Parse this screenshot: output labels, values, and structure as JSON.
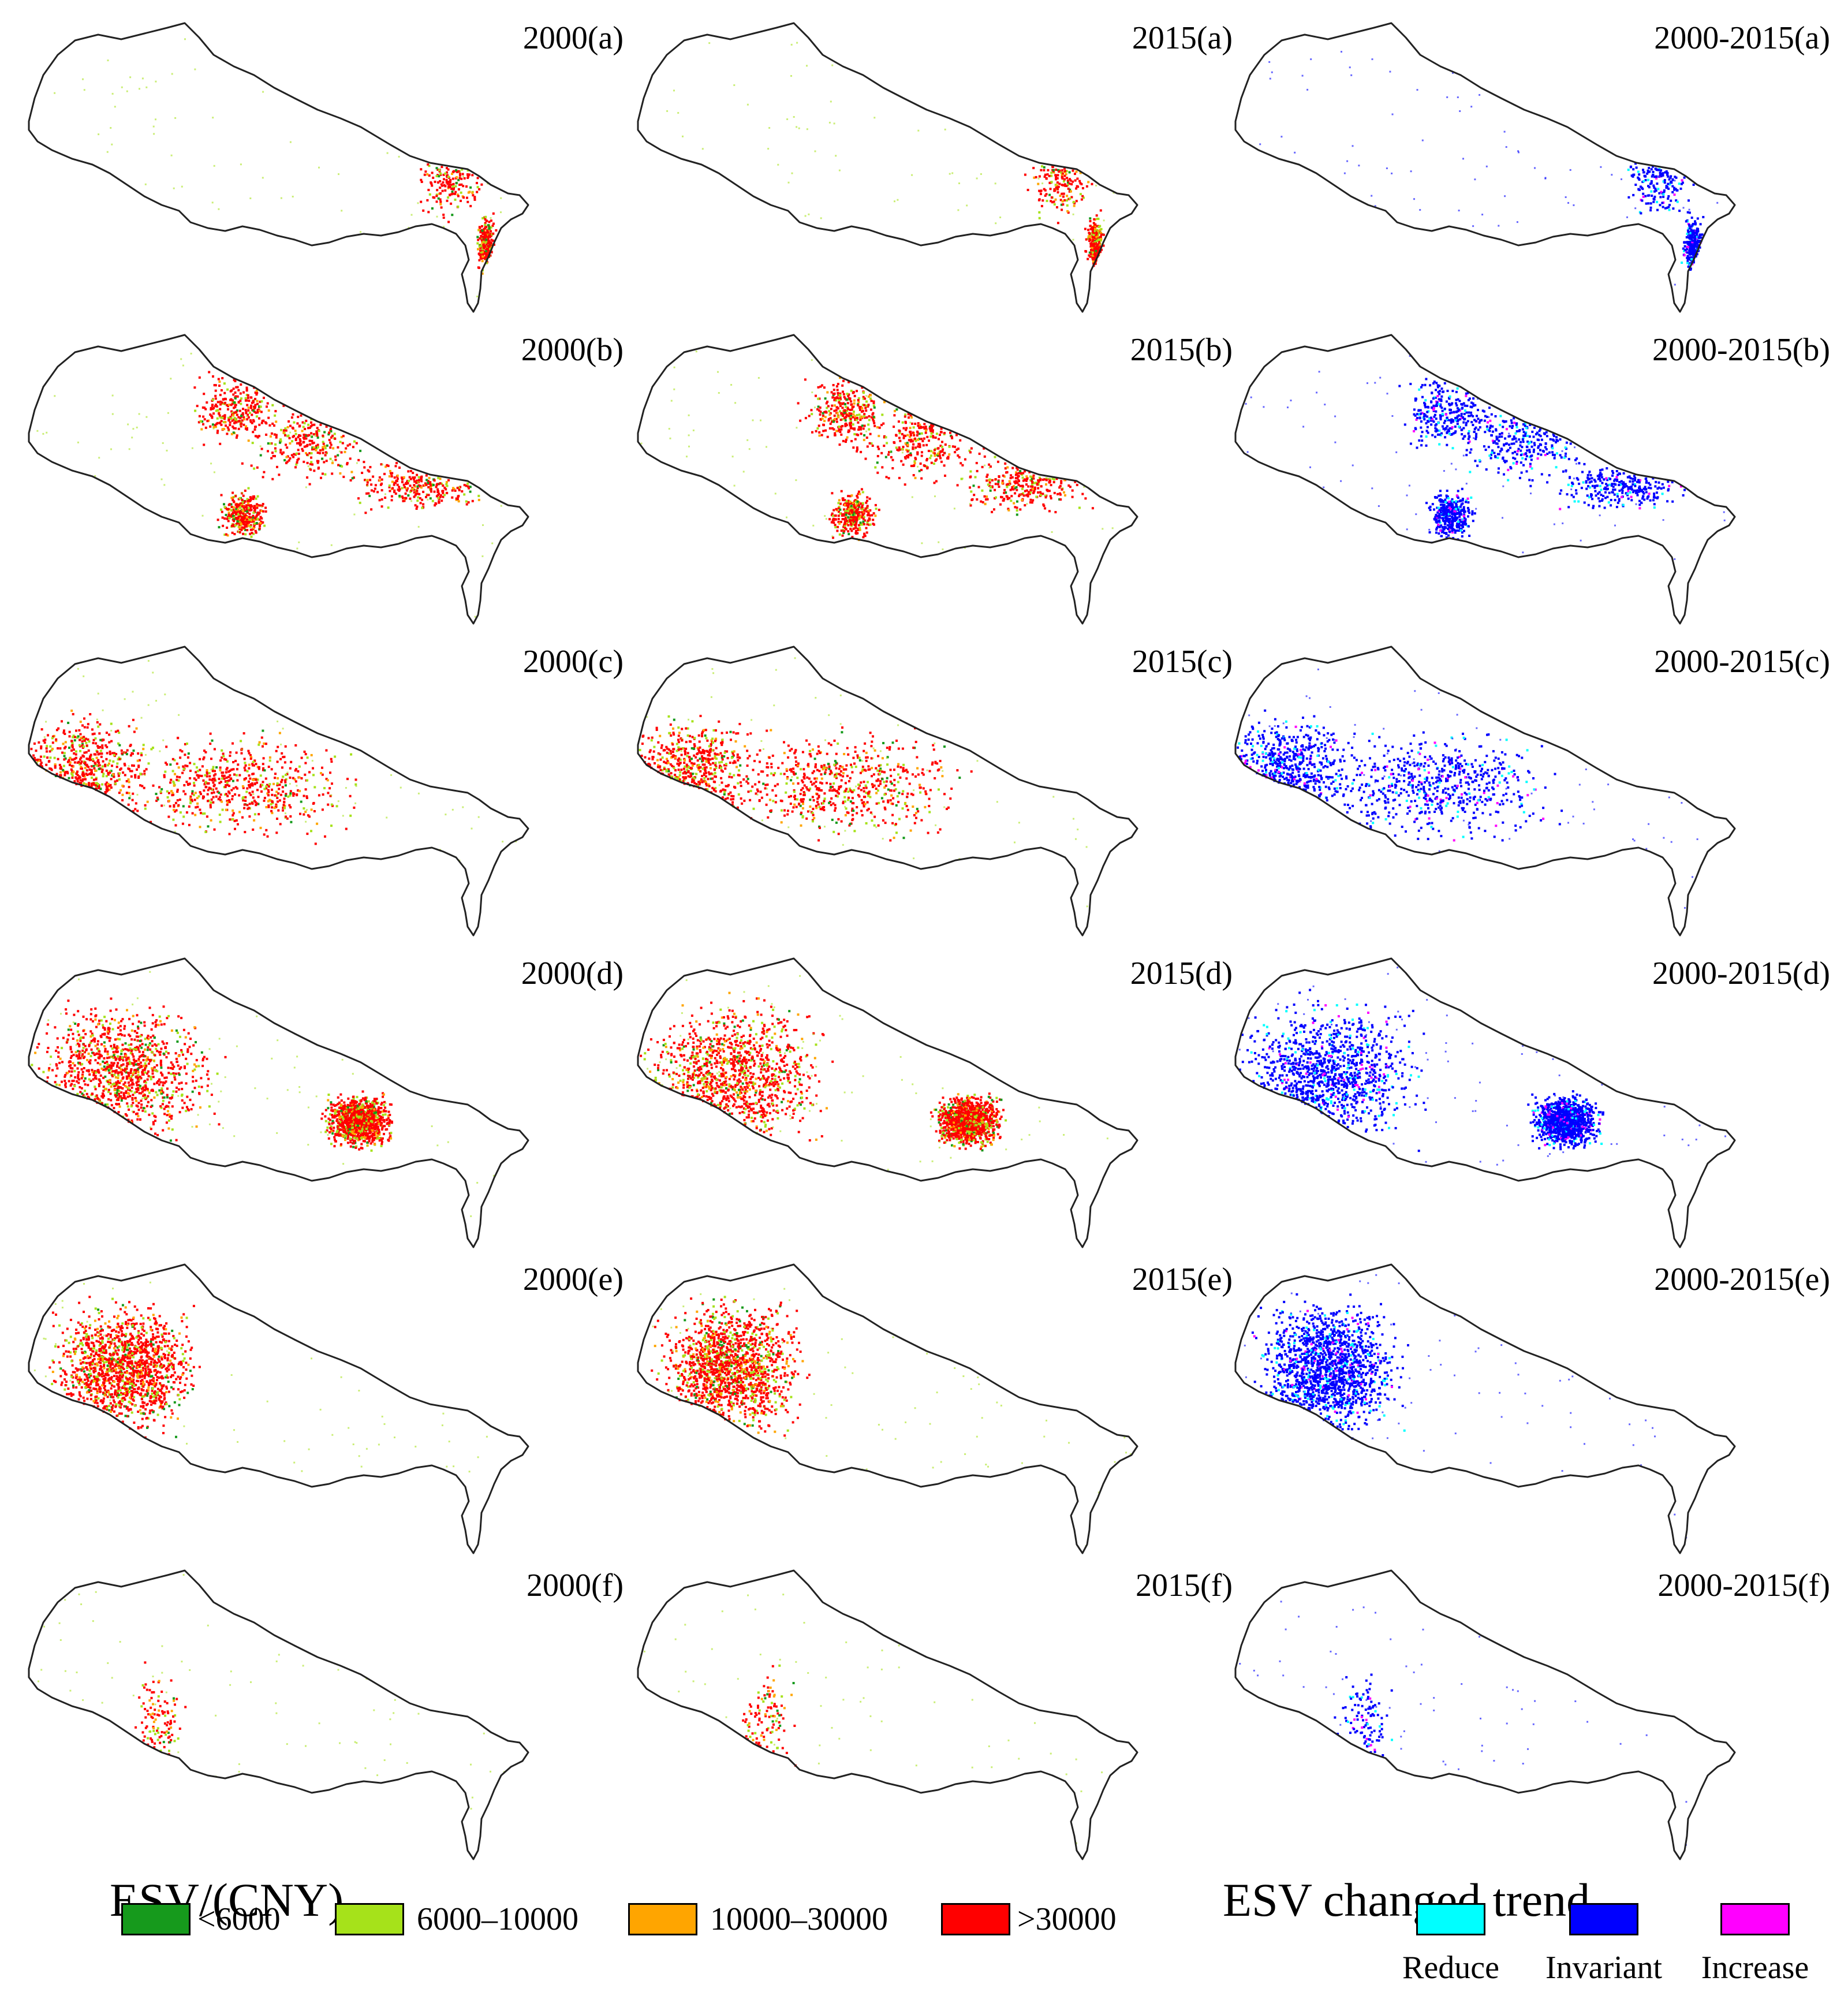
{
  "figure": {
    "rows": [
      "a",
      "b",
      "c",
      "d",
      "e",
      "f"
    ],
    "columns": [
      {
        "id": "y2000",
        "role": "esv"
      },
      {
        "id": "y2015",
        "role": "esv"
      },
      {
        "id": "change",
        "role": "trend"
      }
    ],
    "panels": [
      {
        "row": "a",
        "col": "y2000",
        "label": "2000(a)"
      },
      {
        "row": "a",
        "col": "y2015",
        "label": "2015(a)"
      },
      {
        "row": "a",
        "col": "change",
        "label": "2000-2015(a)"
      },
      {
        "row": "b",
        "col": "y2000",
        "label": "2000(b)"
      },
      {
        "row": "b",
        "col": "y2015",
        "label": "2015(b)"
      },
      {
        "row": "b",
        "col": "change",
        "label": "2000-2015(b)"
      },
      {
        "row": "c",
        "col": "y2000",
        "label": "2000(c)"
      },
      {
        "row": "c",
        "col": "y2015",
        "label": "2015(c)"
      },
      {
        "row": "c",
        "col": "change",
        "label": "2000-2015(c)"
      },
      {
        "row": "d",
        "col": "y2000",
        "label": "2000(d)"
      },
      {
        "row": "d",
        "col": "y2015",
        "label": "2015(d)"
      },
      {
        "row": "d",
        "col": "change",
        "label": "2000-2015(d)"
      },
      {
        "row": "e",
        "col": "y2000",
        "label": "2000(e)"
      },
      {
        "row": "e",
        "col": "y2015",
        "label": "2015(e)"
      },
      {
        "row": "e",
        "col": "change",
        "label": "2000-2015(e)"
      },
      {
        "row": "f",
        "col": "y2000",
        "label": "2000(f)"
      },
      {
        "row": "f",
        "col": "y2015",
        "label": "2015(f)"
      },
      {
        "row": "f",
        "col": "change",
        "label": "2000-2015(f)"
      }
    ]
  },
  "legend_esv": {
    "title": "ESV/(CNY)",
    "items": [
      {
        "label": "<6000",
        "color": "#169a1c"
      },
      {
        "label": "6000–10000",
        "color": "#a6e21a"
      },
      {
        "label": "10000–30000",
        "color": "#ffa500"
      },
      {
        "label": ">30000",
        "color": "#ff0000"
      }
    ]
  },
  "legend_trend": {
    "title": "ESV changed trend",
    "items": [
      {
        "label": "Reduce",
        "color": "#00ffff"
      },
      {
        "label": "Invariant",
        "color": "#0000ff"
      },
      {
        "label": "Increase",
        "color": "#ff00ff"
      }
    ]
  },
  "colors": {
    "outline": "#222222",
    "background": "#ffffff"
  }
}
